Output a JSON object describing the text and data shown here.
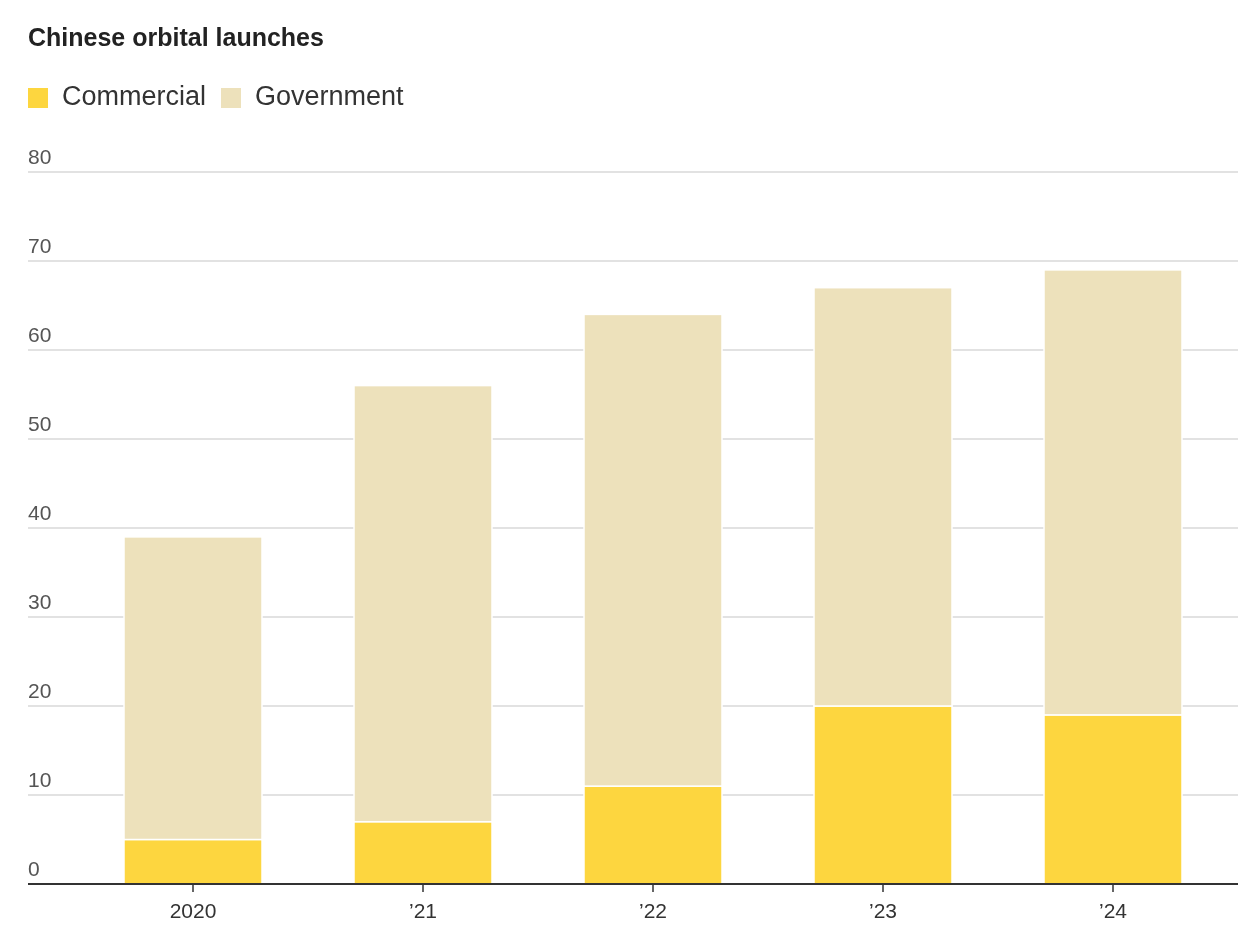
{
  "chart_data": {
    "type": "bar",
    "title": "Chinese orbital launches",
    "categories": [
      "2020",
      "’21",
      "’22",
      "’23",
      "’24"
    ],
    "stacked": true,
    "series": [
      {
        "name": "Commercial",
        "color": "#fdd63f",
        "values": [
          5,
          7,
          11,
          20,
          19
        ]
      },
      {
        "name": "Government",
        "color": "#ede1bb",
        "values": [
          34,
          49,
          53,
          47,
          50
        ]
      }
    ],
    "ylim": [
      0,
      80
    ],
    "yticks": [
      0,
      10,
      20,
      30,
      40,
      50,
      60,
      70,
      80
    ],
    "grid": "y",
    "legend": "top left"
  }
}
